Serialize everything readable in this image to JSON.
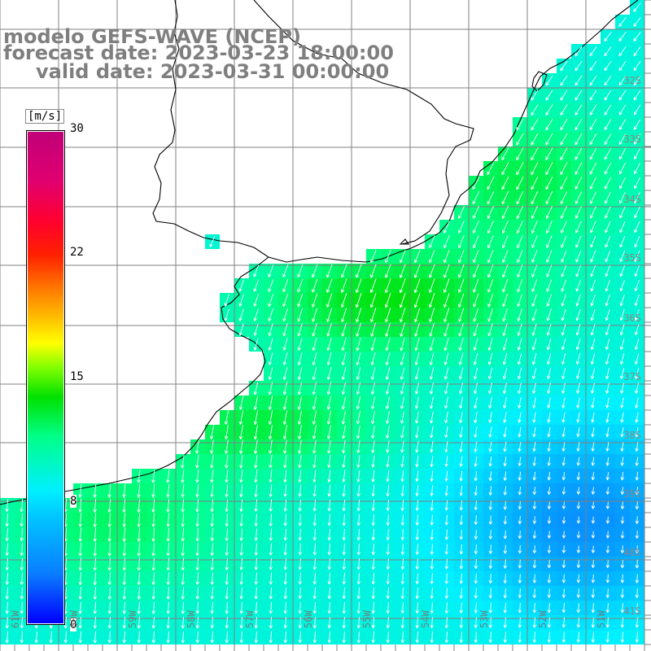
{
  "title": {
    "line1": "modelo GEFS-WAVE (NCEP)",
    "line2": "forecast date: 2023-03-23 18:00:00",
    "line3": "valid date: 2023-03-31 00:00:00"
  },
  "colorbar": {
    "units": "[m/s]",
    "ticks": [
      "30",
      "22",
      "15",
      "8",
      "0"
    ],
    "tick_values": [
      30,
      22,
      15,
      8,
      0
    ],
    "range": [
      0,
      30
    ]
  },
  "map": {
    "lon_labels": [
      "61W",
      "60W",
      "59W",
      "58W",
      "57W",
      "56W",
      "55W",
      "54W",
      "53W",
      "52W",
      "51W"
    ],
    "lat_labels": [
      "32S",
      "33S",
      "34S",
      "35S",
      "36S",
      "37S",
      "38S",
      "39S",
      "40S",
      "41S"
    ],
    "colors": {
      "land": "#ffffff",
      "grid": "#808080",
      "coast": "#000000",
      "arrow": "#ffffff"
    }
  }
}
